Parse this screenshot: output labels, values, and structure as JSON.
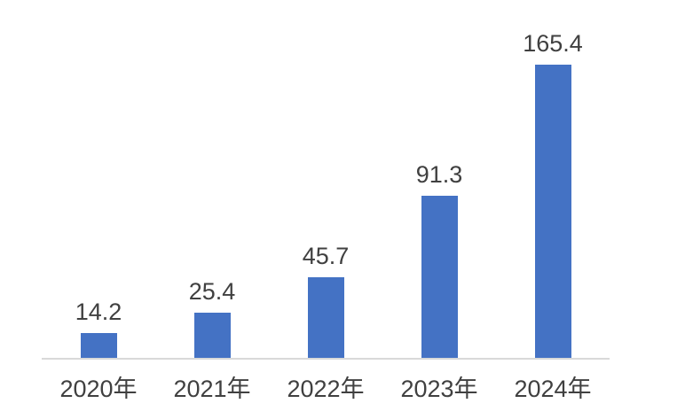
{
  "chart_data": {
    "type": "bar",
    "categories": [
      "2020年",
      "2021年",
      "2022年",
      "2023年",
      "2024年"
    ],
    "values": [
      14.2,
      25.4,
      45.7,
      91.3,
      165.4
    ],
    "data_labels": [
      "14.2",
      "25.4",
      "45.7",
      "91.3",
      "165.4"
    ],
    "series": [
      {
        "name": "",
        "values": [
          14.2,
          25.4,
          45.7,
          91.3,
          165.4
        ]
      }
    ],
    "title": "",
    "xlabel": "",
    "ylabel": "",
    "ylim": [
      0,
      165.4
    ],
    "grid": false,
    "legend_position": "none",
    "colors": {
      "bar": "#4472C4",
      "axis_line": "#D9D9D9",
      "label_text": "#404040",
      "background": "#FFFFFF"
    }
  }
}
